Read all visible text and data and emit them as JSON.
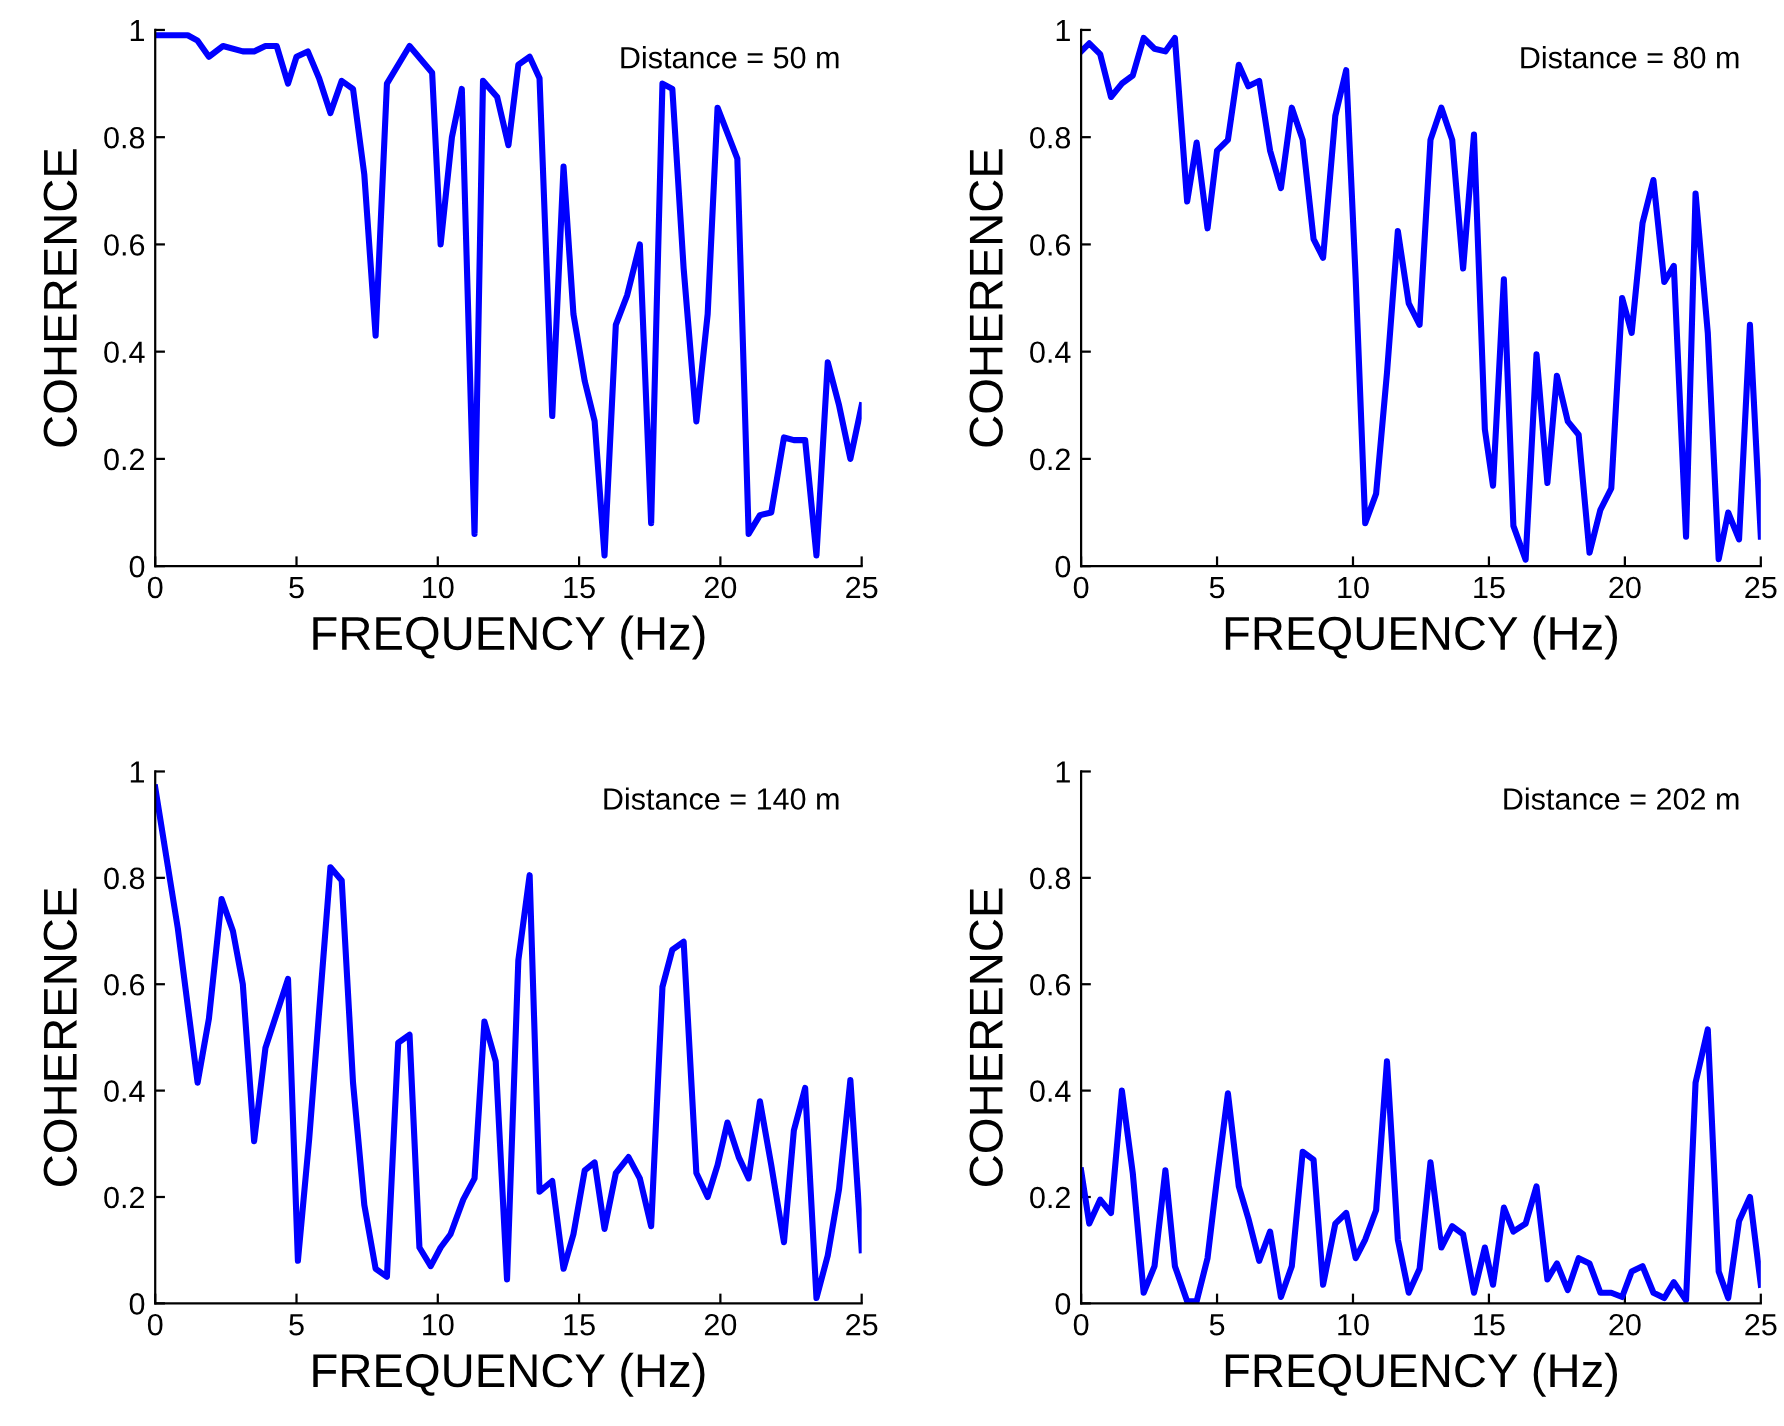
{
  "chart_data": [
    {
      "type": "line",
      "xlabel": "FREQUENCY (Hz)",
      "ylabel": "COHERENCE",
      "annotations": [
        "Distance = 50 m"
      ],
      "xlim": [
        0,
        25
      ],
      "ylim": [
        0,
        1
      ],
      "xticks": [
        0,
        5,
        10,
        15,
        20,
        25
      ],
      "yticks": [
        0,
        0.2,
        0.4,
        0.6,
        0.8,
        1
      ],
      "series": [
        {
          "color": "#0000ff",
          "x": [
            0,
            0.3,
            1.15,
            1.5,
            1.9,
            2.4,
            3.1,
            3.5,
            3.9,
            4.3,
            4.7,
            5.0,
            5.4,
            5.8,
            6.2,
            6.6,
            7.0,
            7.4,
            7.8,
            8.2,
            9.0,
            9.8,
            10.1,
            10.5,
            10.85,
            11.3,
            11.6,
            12.1,
            12.5,
            12.85,
            13.25,
            13.6,
            14.05,
            14.45,
            14.8,
            15.2,
            15.55,
            15.9,
            16.3,
            16.7,
            17.15,
            17.55,
            17.95,
            18.3,
            18.7,
            19.15,
            19.55,
            19.9,
            20.6,
            21.0,
            21.4,
            21.8,
            22.25,
            22.6,
            23.0,
            23.4,
            23.8,
            24.2,
            24.6,
            25
          ],
          "values": [
            0.99,
            0.99,
            0.99,
            0.98,
            0.95,
            0.97,
            0.96,
            0.96,
            0.97,
            0.97,
            0.9,
            0.95,
            0.96,
            0.91,
            0.845,
            0.905,
            0.89,
            0.73,
            0.43,
            0.9,
            0.97,
            0.92,
            0.6,
            0.8,
            0.89,
            0.06,
            0.905,
            0.875,
            0.785,
            0.935,
            0.95,
            0.91,
            0.28,
            0.745,
            0.47,
            0.345,
            0.27,
            0.02,
            0.45,
            0.505,
            0.6,
            0.08,
            0.9,
            0.89,
            0.555,
            0.27,
            0.47,
            0.855,
            0.76,
            0.06,
            0.095,
            0.1,
            0.24,
            0.235,
            0.235,
            0.02,
            0.38,
            0.3,
            0.2,
            0.3
          ]
        }
      ]
    },
    {
      "type": "line",
      "xlabel": "FREQUENCY (Hz)",
      "ylabel": "COHERENCE",
      "annotations": [
        "Distance = 80 m"
      ],
      "xlim": [
        0,
        25
      ],
      "ylim": [
        0,
        1
      ],
      "xticks": [
        0,
        5,
        10,
        15,
        20,
        25
      ],
      "yticks": [
        0,
        0.2,
        0.4,
        0.6,
        0.8,
        1
      ],
      "series": [
        {
          "color": "#0000ff",
          "x": [
            0,
            0.3,
            0.7,
            1.1,
            1.5,
            1.9,
            2.3,
            2.7,
            3.1,
            3.45,
            3.9,
            4.25,
            4.65,
            5.0,
            5.4,
            5.8,
            6.15,
            6.55,
            6.95,
            7.35,
            7.75,
            8.15,
            8.55,
            8.9,
            9.35,
            9.75,
            10.1,
            10.45,
            10.85,
            11.25,
            11.65,
            12.05,
            12.45,
            12.85,
            13.25,
            13.65,
            14.05,
            14.45,
            14.85,
            15.15,
            15.55,
            15.9,
            16.35,
            16.75,
            17.15,
            17.5,
            17.9,
            18.3,
            18.7,
            19.1,
            19.5,
            19.9,
            20.25,
            20.65,
            21.05,
            21.45,
            21.8,
            22.25,
            22.6,
            23.05,
            23.45,
            23.8,
            24.2,
            24.6,
            25
          ],
          "values": [
            0.96,
            0.975,
            0.955,
            0.875,
            0.9,
            0.915,
            0.985,
            0.965,
            0.96,
            0.985,
            0.68,
            0.79,
            0.63,
            0.775,
            0.795,
            0.935,
            0.895,
            0.905,
            0.775,
            0.705,
            0.855,
            0.795,
            0.61,
            0.575,
            0.84,
            0.925,
            0.535,
            0.08,
            0.135,
            0.36,
            0.625,
            0.49,
            0.45,
            0.795,
            0.855,
            0.795,
            0.555,
            0.805,
            0.255,
            0.15,
            0.535,
            0.075,
            0.012,
            0.395,
            0.155,
            0.355,
            0.27,
            0.245,
            0.025,
            0.105,
            0.145,
            0.5,
            0.435,
            0.64,
            0.72,
            0.53,
            0.56,
            0.055,
            0.695,
            0.435,
            0.013,
            0.1,
            0.05,
            0.45,
            0.055
          ]
        }
      ]
    },
    {
      "type": "line",
      "xlabel": "FREQUENCY (Hz)",
      "ylabel": "COHERENCE",
      "annotations": [
        "Distance = 140 m"
      ],
      "xlim": [
        0,
        25
      ],
      "ylim": [
        0,
        1
      ],
      "xticks": [
        0,
        5,
        10,
        15,
        20,
        25
      ],
      "yticks": [
        0,
        0.2,
        0.4,
        0.6,
        0.8,
        1
      ],
      "series": [
        {
          "color": "#0000ff",
          "x": [
            0,
            0.8,
            1.5,
            1.9,
            2.35,
            2.75,
            3.1,
            3.5,
            3.9,
            4.7,
            5.05,
            5.45,
            6.2,
            6.6,
            7.0,
            7.4,
            7.8,
            8.2,
            8.6,
            9.0,
            9.35,
            9.75,
            10.1,
            10.45,
            10.9,
            11.3,
            11.65,
            12.05,
            12.45,
            12.85,
            13.25,
            13.6,
            14.05,
            14.45,
            14.8,
            15.2,
            15.55,
            15.9,
            16.3,
            16.75,
            17.15,
            17.55,
            17.95,
            18.3,
            18.7,
            19.15,
            19.55,
            19.9,
            20.25,
            20.65,
            21.0,
            21.4,
            21.8,
            22.25,
            22.6,
            23.0,
            23.4,
            23.8,
            24.2,
            24.6,
            25
          ],
          "values": [
            0.97,
            0.705,
            0.415,
            0.535,
            0.76,
            0.7,
            0.6,
            0.305,
            0.48,
            0.61,
            0.08,
            0.31,
            0.82,
            0.795,
            0.415,
            0.185,
            0.065,
            0.05,
            0.49,
            0.505,
            0.105,
            0.07,
            0.105,
            0.13,
            0.195,
            0.235,
            0.53,
            0.455,
            0.045,
            0.645,
            0.805,
            0.21,
            0.23,
            0.065,
            0.13,
            0.25,
            0.265,
            0.14,
            0.245,
            0.275,
            0.235,
            0.145,
            0.595,
            0.665,
            0.68,
            0.245,
            0.2,
            0.26,
            0.34,
            0.275,
            0.235,
            0.38,
            0.26,
            0.115,
            0.325,
            0.405,
            0.01,
            0.09,
            0.215,
            0.42,
            0.1
          ]
        }
      ]
    },
    {
      "type": "line",
      "xlabel": "FREQUENCY (Hz)",
      "ylabel": "COHERENCE",
      "annotations": [
        "Distance = 202 m"
      ],
      "xlim": [
        0,
        25
      ],
      "ylim": [
        0,
        1
      ],
      "xticks": [
        0,
        5,
        10,
        15,
        20,
        25
      ],
      "yticks": [
        0,
        0.2,
        0.4,
        0.6,
        0.8,
        1
      ],
      "series": [
        {
          "color": "#0000ff",
          "x": [
            0,
            0.3,
            0.7,
            1.1,
            1.5,
            1.9,
            2.3,
            2.7,
            3.1,
            3.45,
            3.9,
            4.25,
            4.65,
            5.0,
            5.4,
            5.8,
            6.15,
            6.55,
            6.95,
            7.35,
            7.75,
            8.15,
            8.55,
            8.9,
            9.35,
            9.75,
            10.1,
            10.45,
            10.85,
            11.25,
            11.65,
            12.05,
            12.45,
            12.85,
            13.25,
            13.65,
            14.05,
            14.45,
            14.85,
            15.15,
            15.55,
            15.9,
            16.35,
            16.75,
            17.15,
            17.5,
            17.9,
            18.3,
            18.7,
            19.1,
            19.5,
            19.9,
            20.25,
            20.65,
            21.05,
            21.45,
            21.8,
            22.25,
            22.6,
            23.05,
            23.45,
            23.8,
            24.2,
            24.6,
            25
          ],
          "values": [
            0.25,
            0.15,
            0.195,
            0.17,
            0.4,
            0.245,
            0.02,
            0.07,
            0.25,
            0.07,
            0.004,
            0.004,
            0.085,
            0.235,
            0.395,
            0.22,
            0.16,
            0.08,
            0.135,
            0.012,
            0.07,
            0.285,
            0.27,
            0.035,
            0.15,
            0.17,
            0.085,
            0.12,
            0.175,
            0.455,
            0.12,
            0.02,
            0.065,
            0.265,
            0.105,
            0.145,
            0.13,
            0.02,
            0.105,
            0.035,
            0.18,
            0.135,
            0.15,
            0.22,
            0.045,
            0.075,
            0.025,
            0.085,
            0.075,
            0.02,
            0.02,
            0.012,
            0.06,
            0.07,
            0.02,
            0.01,
            0.04,
            0.006,
            0.415,
            0.515,
            0.06,
            0.01,
            0.155,
            0.2,
            0.035
          ]
        }
      ]
    }
  ]
}
